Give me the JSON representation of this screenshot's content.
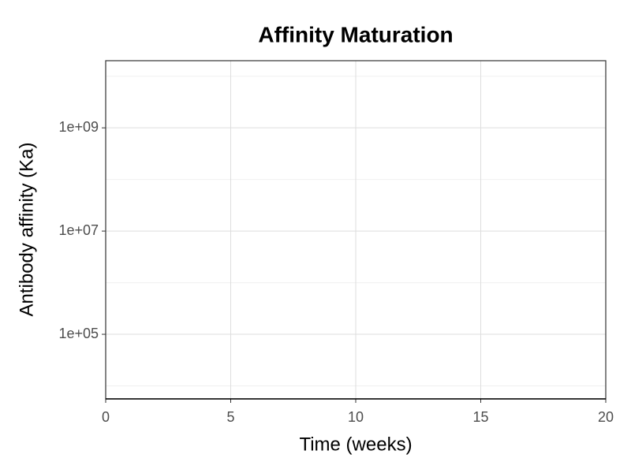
{
  "chart_data": {
    "type": "line",
    "title": "Affinity Maturation",
    "x_label": "Time (weeks)",
    "y_label": "Antibody affinity (Ka)",
    "xlim": [
      0,
      20
    ],
    "xticks": [
      0,
      5,
      10,
      15,
      20
    ],
    "ylim": [
      5600,
      20000000000
    ],
    "y_log": true,
    "yticks": [
      {
        "value": 100000,
        "label": "1e+05"
      },
      {
        "value": 10000000,
        "label": "1e+07"
      },
      {
        "value": 1000000000,
        "label": "1e+09"
      }
    ],
    "grid": true,
    "series": []
  }
}
